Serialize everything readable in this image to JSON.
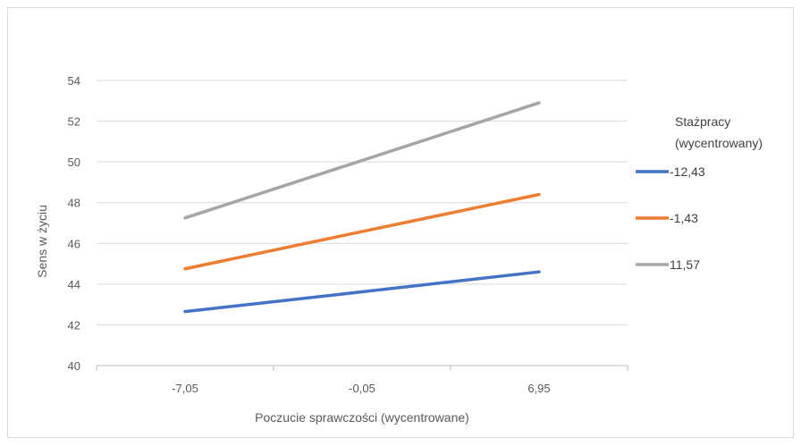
{
  "chart_data": {
    "type": "line",
    "xlabel": "Poczucie sprawczości (wycentrowane)",
    "ylabel": "Sens w życiu",
    "categories": [
      "-7,05",
      "-0,05",
      "6,95"
    ],
    "x": [
      -7.05,
      -0.05,
      6.95
    ],
    "ylim": [
      40,
      54
    ],
    "yticks": [
      40,
      42,
      44,
      46,
      48,
      50,
      52,
      54
    ],
    "ytick_labels": [
      "40",
      "42",
      "44",
      "46",
      "48",
      "50",
      "52",
      "54"
    ],
    "grid": "horizontal",
    "legend": {
      "title_lines": [
        "Stażpracy",
        "(wycentrowany)"
      ],
      "placement": "right"
    },
    "series": [
      {
        "name": "-12,43",
        "color": "#4472c4",
        "values": [
          42.65,
          43.62,
          44.6
        ]
      },
      {
        "name": "-1,43",
        "color": "#ed7d31",
        "values": [
          44.75,
          46.58,
          48.4
        ]
      },
      {
        "name": "11,57",
        "color": "#a5a5a5",
        "values": [
          47.25,
          50.07,
          52.9
        ]
      }
    ]
  }
}
